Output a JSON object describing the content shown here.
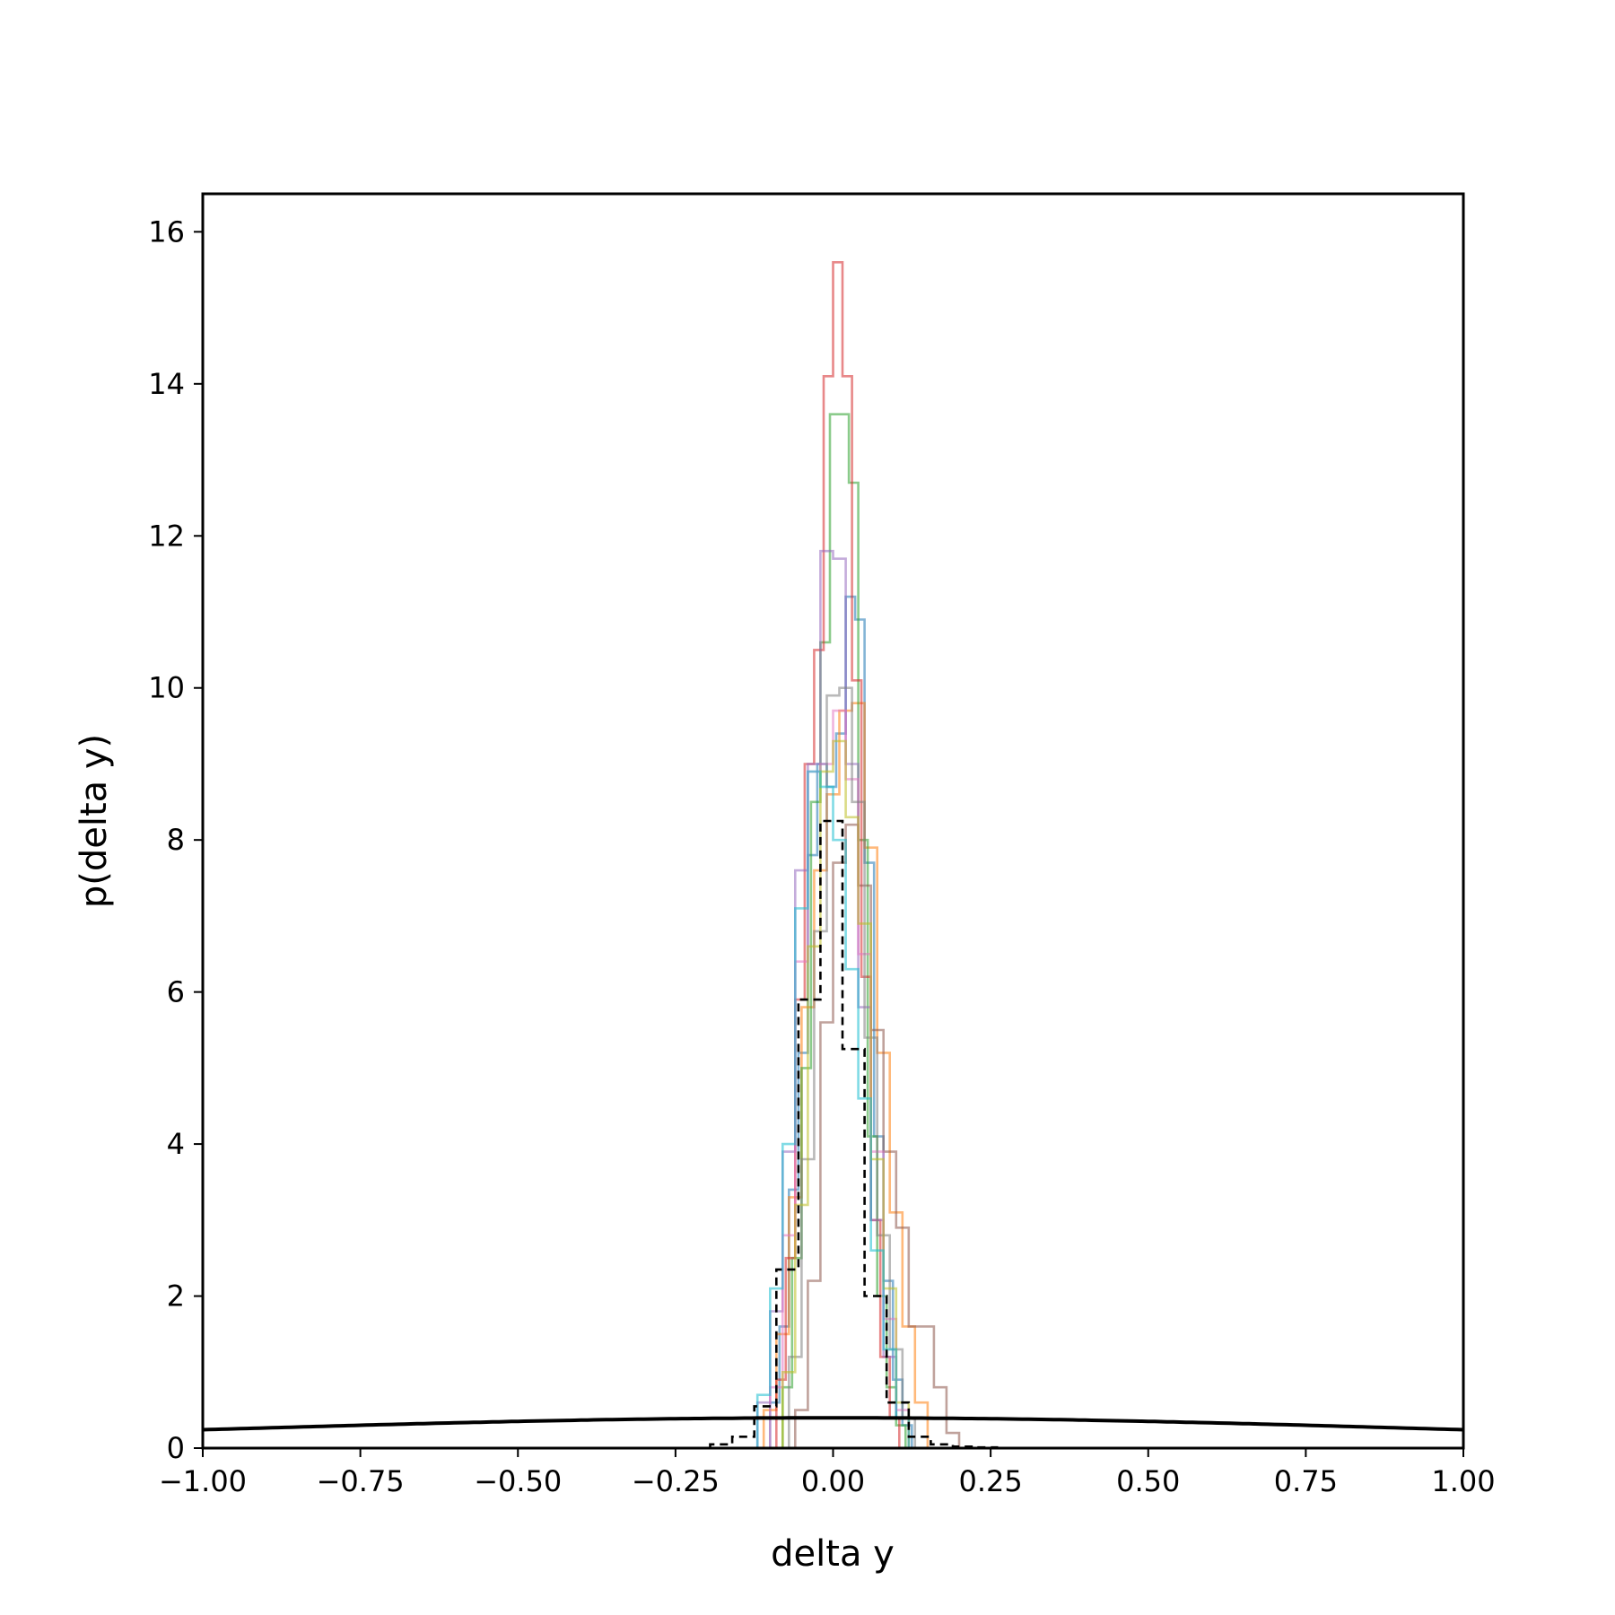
{
  "chart_data": {
    "type": "histogram",
    "title": "",
    "xlabel": "delta y",
    "ylabel": "p(delta y)",
    "xlim": [
      -1.0,
      1.0
    ],
    "ylim": [
      0,
      16.5
    ],
    "x_ticks": [
      "−1.00",
      "−0.75",
      "−0.50",
      "−0.25",
      "0.00",
      "0.25",
      "0.50",
      "0.75",
      "1.00"
    ],
    "x_tick_values": [
      -1.0,
      -0.75,
      -0.5,
      -0.25,
      0.0,
      0.25,
      0.5,
      0.75,
      1.0
    ],
    "y_ticks": [
      "0",
      "2",
      "4",
      "6",
      "8",
      "10",
      "12",
      "14",
      "16"
    ],
    "y_tick_values": [
      0,
      2,
      4,
      6,
      8,
      10,
      12,
      14,
      16
    ],
    "grid": false,
    "legend": "none",
    "series": [
      {
        "color": "#1f77b4",
        "style": "step",
        "bins": [
          -0.1,
          -0.085,
          -0.07,
          -0.055,
          -0.04,
          -0.025,
          -0.01,
          0.005,
          0.02,
          0.035,
          0.05,
          0.065,
          0.08,
          0.095,
          0.11,
          0.125
        ],
        "values": [
          0.6,
          1.6,
          3.4,
          5.2,
          7.8,
          9.0,
          8.7,
          9.4,
          11.2,
          10.9,
          7.7,
          4.1,
          2.2,
          0.9,
          0.3
        ]
      },
      {
        "color": "#ff7f0e",
        "style": "step",
        "bins": [
          -0.11,
          -0.09,
          -0.07,
          -0.05,
          -0.03,
          -0.01,
          0.01,
          0.03,
          0.05,
          0.07,
          0.09,
          0.11,
          0.13,
          0.15
        ],
        "values": [
          0.5,
          1.5,
          3.3,
          5.8,
          7.6,
          8.6,
          9.7,
          9.8,
          7.9,
          5.2,
          3.1,
          1.6,
          0.6
        ]
      },
      {
        "color": "#2ca02c",
        "style": "step",
        "bins": [
          -0.08,
          -0.065,
          -0.05,
          -0.035,
          -0.02,
          -0.005,
          0.01,
          0.025,
          0.04,
          0.055,
          0.07,
          0.085,
          0.1,
          0.115
        ],
        "values": [
          0.8,
          2.5,
          5.0,
          8.5,
          10.6,
          13.6,
          13.6,
          12.7,
          8.0,
          4.1,
          2.0,
          0.8,
          0.3
        ]
      },
      {
        "color": "#d62728",
        "style": "step",
        "bins": [
          -0.09,
          -0.075,
          -0.06,
          -0.045,
          -0.03,
          -0.015,
          0.0,
          0.015,
          0.03,
          0.045,
          0.06,
          0.075,
          0.09,
          0.105
        ],
        "values": [
          0.9,
          2.5,
          5.9,
          9.0,
          10.5,
          14.1,
          15.6,
          14.1,
          10.1,
          6.2,
          3.0,
          1.2,
          0.4
        ]
      },
      {
        "color": "#9467bd",
        "style": "step",
        "bins": [
          -0.12,
          -0.1,
          -0.08,
          -0.06,
          -0.04,
          -0.02,
          0.0,
          0.02,
          0.04,
          0.06,
          0.08,
          0.1,
          0.12
        ],
        "values": [
          0.6,
          1.8,
          3.9,
          7.6,
          9.0,
          11.8,
          11.7,
          9.0,
          5.8,
          3.0,
          1.2,
          0.4
        ]
      },
      {
        "color": "#8c564b",
        "style": "step",
        "bins": [
          -0.06,
          -0.04,
          -0.02,
          0.0,
          0.02,
          0.04,
          0.06,
          0.08,
          0.1,
          0.12,
          0.14,
          0.16,
          0.18,
          0.2
        ],
        "values": [
          0.5,
          2.2,
          5.6,
          7.7,
          8.2,
          7.4,
          5.5,
          3.9,
          2.9,
          1.6,
          1.6,
          0.8,
          0.2
        ]
      },
      {
        "color": "#e377c2",
        "style": "step",
        "bins": [
          -0.1,
          -0.08,
          -0.06,
          -0.04,
          -0.02,
          0.0,
          0.02,
          0.04,
          0.06,
          0.08,
          0.1,
          0.12
        ],
        "values": [
          0.8,
          2.8,
          6.4,
          8.9,
          9.0,
          9.7,
          8.8,
          6.5,
          3.9,
          1.7,
          0.5
        ]
      },
      {
        "color": "#7f7f7f",
        "style": "step",
        "bins": [
          -0.07,
          -0.05,
          -0.03,
          -0.01,
          0.01,
          0.03,
          0.05,
          0.07,
          0.09,
          0.11,
          0.13
        ],
        "values": [
          1.2,
          3.8,
          6.8,
          9.9,
          10.0,
          8.5,
          5.4,
          2.8,
          1.3,
          0.4
        ]
      },
      {
        "color": "#bcbd22",
        "style": "step",
        "bins": [
          -0.08,
          -0.06,
          -0.04,
          -0.02,
          0.0,
          0.02,
          0.04,
          0.06,
          0.08,
          0.1,
          0.12
        ],
        "values": [
          1.0,
          3.2,
          6.6,
          8.9,
          9.3,
          8.3,
          6.9,
          3.8,
          2.1,
          0.6
        ]
      },
      {
        "color": "#17becf",
        "style": "step",
        "bins": [
          -0.12,
          -0.1,
          -0.08,
          -0.06,
          -0.04,
          -0.02,
          0.0,
          0.02,
          0.04,
          0.06,
          0.08,
          0.1,
          0.12
        ],
        "values": [
          0.7,
          2.1,
          4.0,
          7.1,
          8.9,
          8.7,
          8.0,
          6.3,
          4.6,
          2.6,
          1.3,
          0.4
        ]
      },
      {
        "color": "#000000",
        "style": "dashed-step",
        "bins": [
          -0.195,
          -0.16,
          -0.125,
          -0.09,
          -0.055,
          -0.02,
          0.015,
          0.05,
          0.085,
          0.12,
          0.155,
          0.19,
          0.225,
          0.26
        ],
        "values": [
          0.05,
          0.15,
          0.55,
          2.35,
          5.9,
          8.25,
          5.25,
          2.0,
          0.6,
          0.15,
          0.05,
          0.02,
          0.01
        ]
      },
      {
        "color": "#000000",
        "style": "line",
        "x": [
          -1.0,
          -0.875,
          -0.75,
          -0.625,
          -0.5,
          -0.375,
          -0.25,
          -0.125,
          0.0,
          0.125,
          0.25,
          0.375,
          0.5,
          0.625,
          0.75,
          0.875,
          1.0
        ],
        "values": [
          0.242,
          0.272,
          0.301,
          0.328,
          0.352,
          0.372,
          0.387,
          0.396,
          0.399,
          0.396,
          0.387,
          0.372,
          0.352,
          0.328,
          0.301,
          0.272,
          0.242
        ]
      }
    ]
  }
}
